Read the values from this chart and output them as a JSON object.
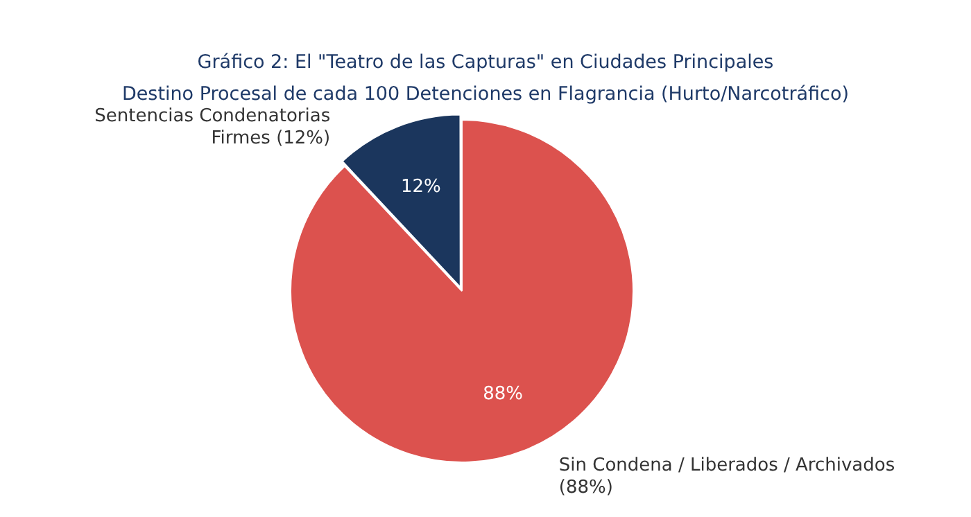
{
  "chart_data": {
    "type": "pie",
    "title": "Gráfico 2: El \"Teatro de las Capturas\" en Ciudades Principales\nDestino Procesal de cada 100 Detenciones en Flagrancia (Hurto/Narcotráfico)",
    "categories": [
      "Sentencias Condenatorias\nFirmes (12%)",
      "Sin Condena / Liberados / Archivados\n(88%)"
    ],
    "values": [
      12,
      88
    ],
    "colors": [
      "#1b365d",
      "#dc524e"
    ],
    "value_labels": [
      "12%",
      "88%"
    ],
    "legend": false
  }
}
